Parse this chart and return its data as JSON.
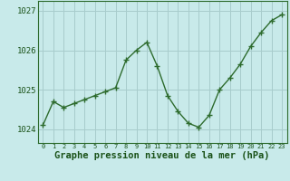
{
  "x": [
    0,
    1,
    2,
    3,
    4,
    5,
    6,
    7,
    8,
    9,
    10,
    11,
    12,
    13,
    14,
    15,
    16,
    17,
    18,
    19,
    20,
    21,
    22,
    23
  ],
  "y": [
    1024.1,
    1024.7,
    1024.55,
    1024.65,
    1024.75,
    1024.85,
    1024.95,
    1025.05,
    1025.75,
    1026.0,
    1026.2,
    1025.6,
    1024.85,
    1024.45,
    1024.15,
    1024.05,
    1024.35,
    1025.0,
    1025.3,
    1025.65,
    1026.1,
    1026.45,
    1026.75,
    1026.9
  ],
  "line_color": "#2d6b2d",
  "marker": "+",
  "marker_size": 4,
  "bg_color": "#c8eaea",
  "grid_color": "#a8cccc",
  "spine_color": "#2d6b2d",
  "title": "Graphe pression niveau de la mer (hPa)",
  "title_fontsize": 7.5,
  "title_color": "#1a5218",
  "ytick_labels": [
    "1024",
    "1025",
    "1026",
    "1027"
  ],
  "ytick_values": [
    1024,
    1025,
    1026,
    1027
  ],
  "ylim": [
    1023.65,
    1027.25
  ],
  "xlim": [
    -0.5,
    23.5
  ],
  "xtick_labels": [
    "0",
    "1",
    "2",
    "3",
    "4",
    "5",
    "6",
    "7",
    "8",
    "9",
    "10",
    "11",
    "12",
    "13",
    "14",
    "15",
    "16",
    "17",
    "18",
    "19",
    "20",
    "21",
    "22",
    "23"
  ],
  "tick_color": "#1a5218",
  "line_width": 1.0
}
